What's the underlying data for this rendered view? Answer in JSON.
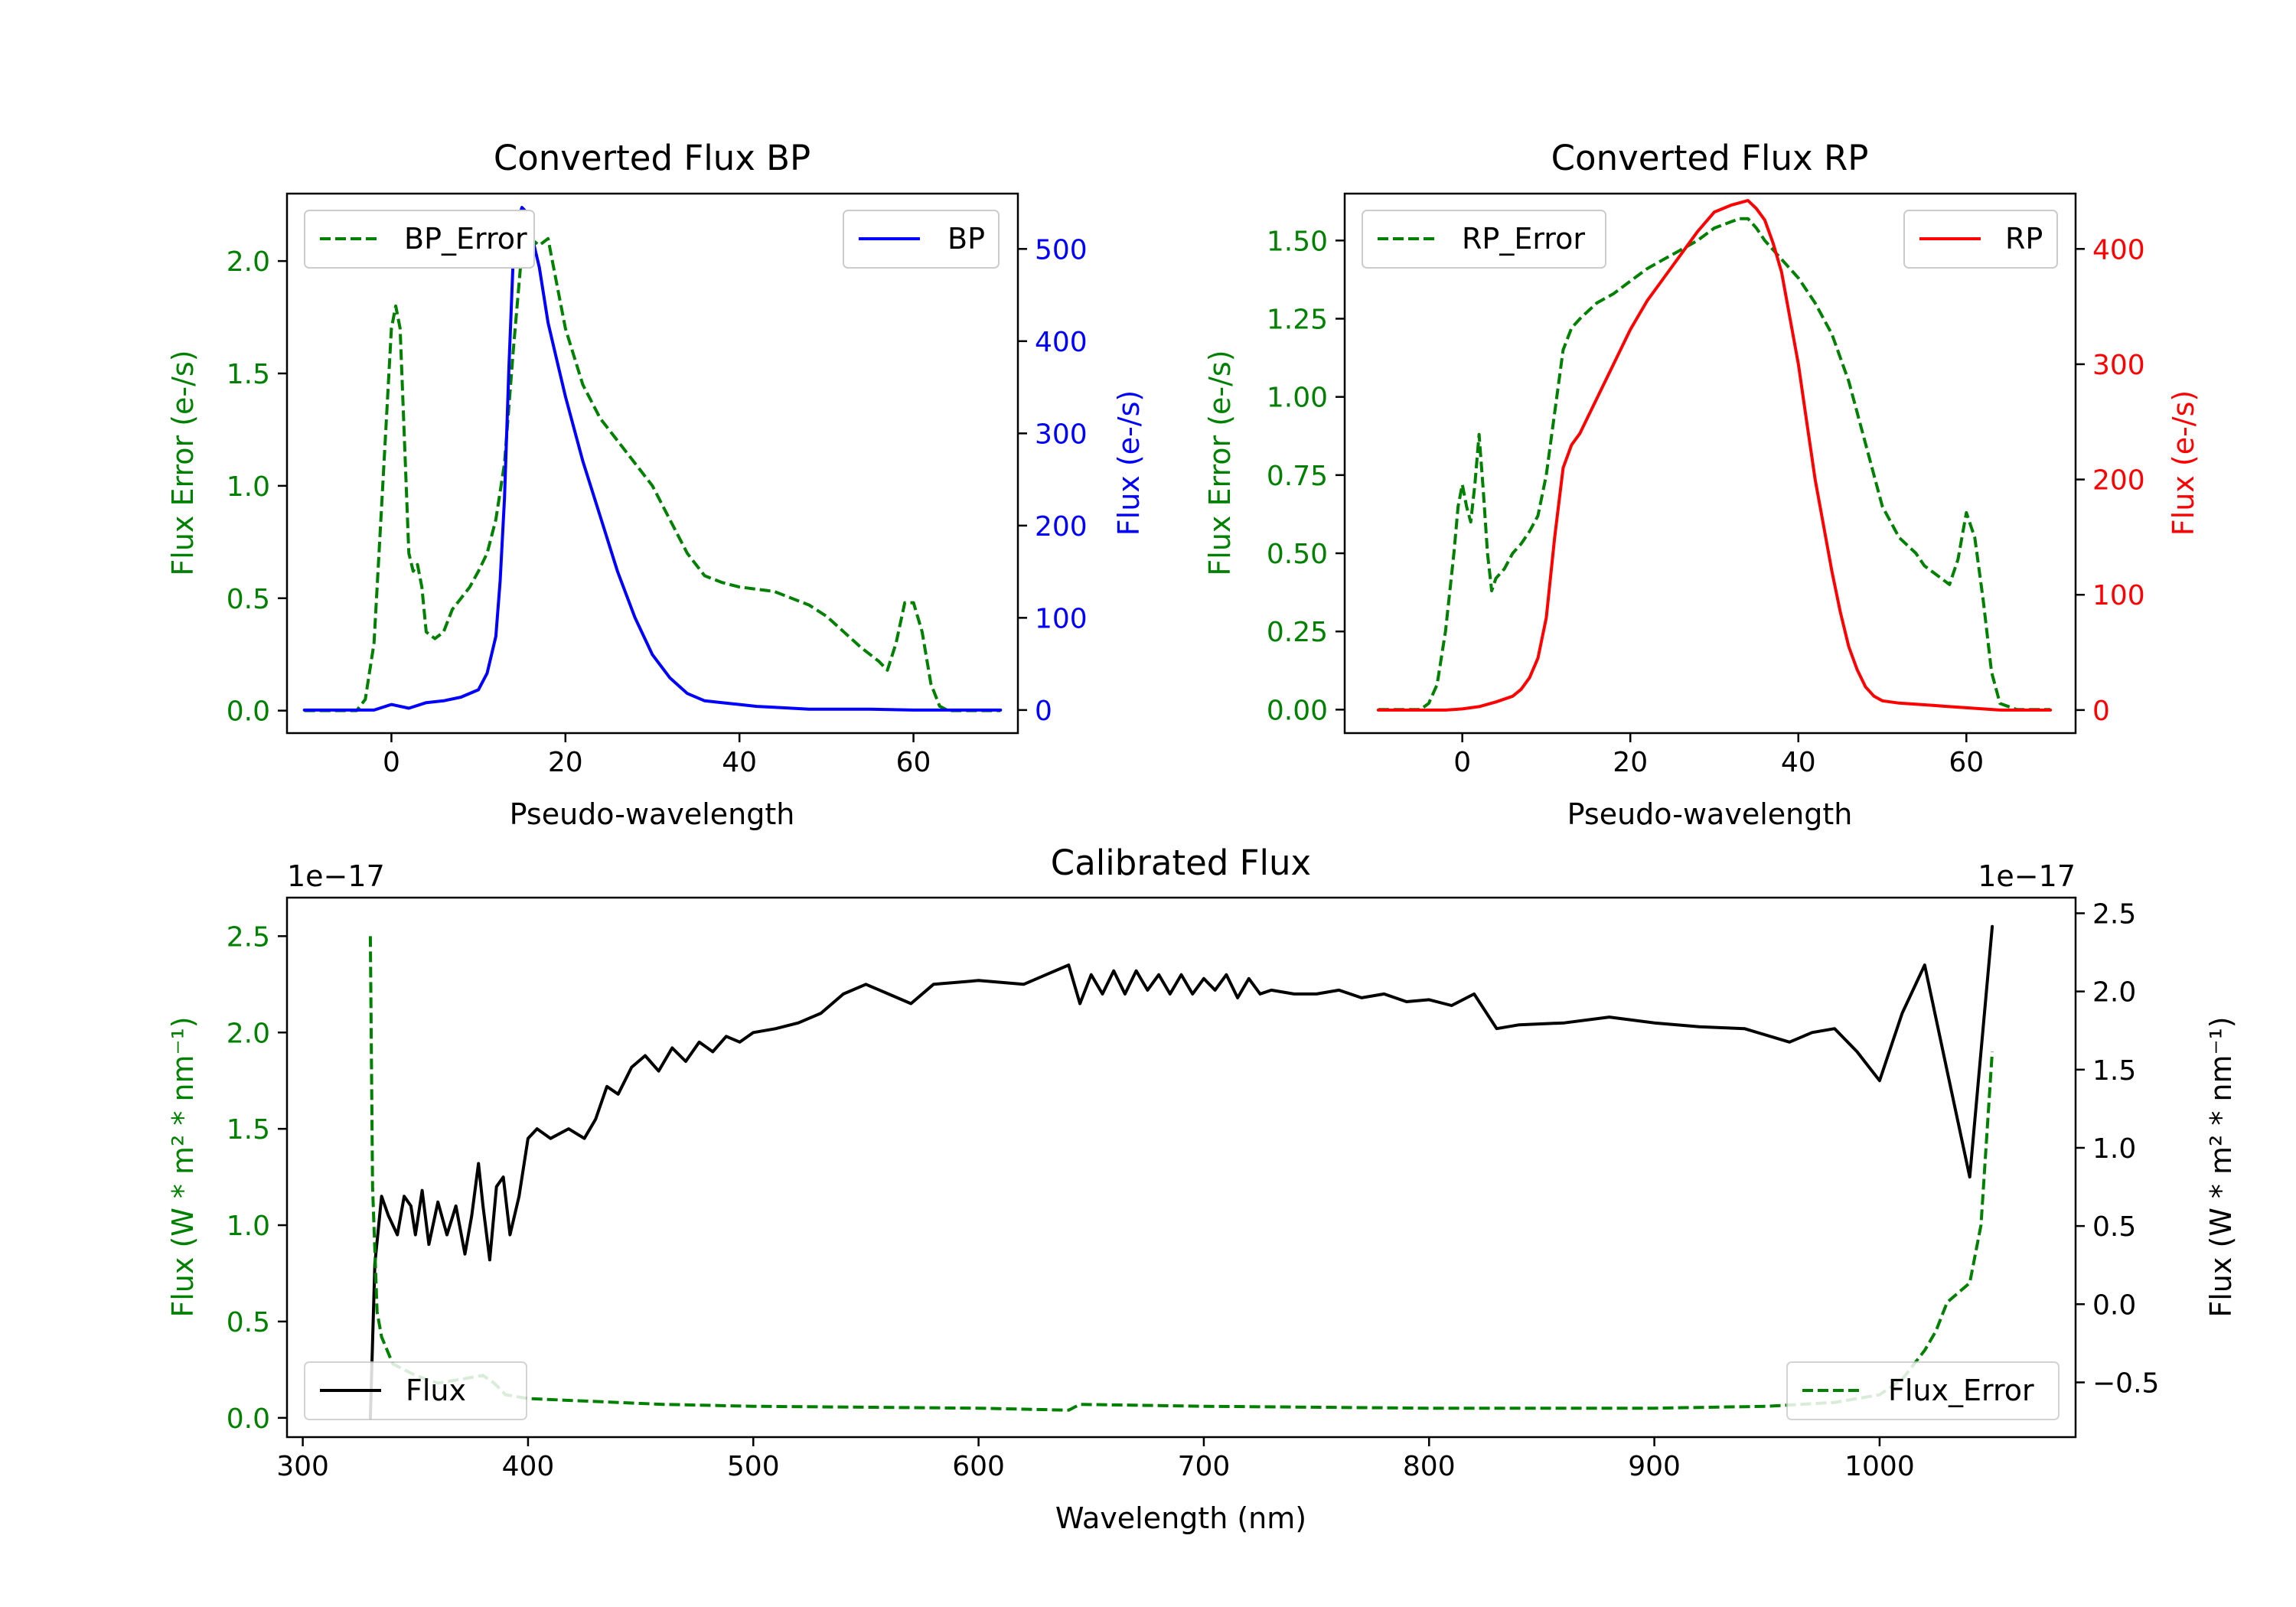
{
  "colors": {
    "error": "#008000",
    "bp": "#0000ff",
    "rp": "#ff0000",
    "flux": "#000000",
    "axis": "#000000"
  },
  "chart_data": [
    {
      "id": "bp",
      "type": "line",
      "title": "Converted Flux BP",
      "xlabel": "Pseudo-wavelength",
      "ylabel_left": "Flux Error (e-/s)",
      "ylabel_right": "Flux (e-/s)",
      "xlim": [
        -12,
        72
      ],
      "ylim_left": [
        -0.1,
        2.3
      ],
      "ylim_right": [
        -25,
        560
      ],
      "xticks": [
        0,
        20,
        40,
        60
      ],
      "xtick_labels": [
        "0",
        "20",
        "40",
        "60"
      ],
      "yticks_left": [
        0,
        0.5,
        1,
        1.5,
        2
      ],
      "ytick_labels_left": [
        "0.0",
        "0.5",
        "1.0",
        "1.5",
        "2.0"
      ],
      "yticks_right": [
        0,
        100,
        200,
        300,
        400,
        500
      ],
      "ytick_labels_right": [
        "0",
        "100",
        "200",
        "300",
        "400",
        "500"
      ],
      "legend_left": {
        "position": "upper-left",
        "label": "BP_Error",
        "style": "dashed"
      },
      "legend_right": {
        "position": "upper-right",
        "label": "BP",
        "style": "solid"
      },
      "series": [
        {
          "name": "BP_Error",
          "axis": "left",
          "style": "dashed",
          "x": [
            -10,
            -4,
            -3,
            -2,
            -1,
            0,
            0.5,
            1,
            1.5,
            2,
            2.5,
            3,
            3.5,
            4,
            5,
            6,
            7,
            8,
            9,
            10,
            11,
            12,
            13,
            14,
            15,
            15.5,
            16,
            17,
            18,
            19,
            20,
            22,
            24,
            26,
            28,
            30,
            32,
            34,
            36,
            38,
            40,
            42,
            44,
            46,
            48,
            50,
            52,
            54,
            56,
            57,
            58,
            59,
            60,
            61,
            62,
            63,
            64,
            66,
            68,
            70
          ],
          "y": [
            0,
            0,
            0.05,
            0.3,
            1.0,
            1.7,
            1.8,
            1.7,
            1.2,
            0.7,
            0.62,
            0.65,
            0.55,
            0.35,
            0.32,
            0.35,
            0.45,
            0.5,
            0.55,
            0.62,
            0.7,
            0.85,
            1.1,
            1.6,
            2.05,
            2.15,
            2.1,
            2.07,
            2.1,
            1.9,
            1.7,
            1.45,
            1.3,
            1.2,
            1.1,
            1.0,
            0.85,
            0.7,
            0.6,
            0.57,
            0.55,
            0.54,
            0.53,
            0.5,
            0.47,
            0.42,
            0.35,
            0.28,
            0.22,
            0.18,
            0.3,
            0.48,
            0.48,
            0.35,
            0.12,
            0.02,
            0,
            0,
            0,
            0
          ]
        },
        {
          "name": "BP",
          "axis": "right",
          "style": "solid",
          "x": [
            -10,
            -2,
            0,
            2,
            4,
            6,
            8,
            10,
            11,
            12,
            12.5,
            13,
            13.5,
            14,
            14.5,
            15,
            15.5,
            16,
            17,
            18,
            19,
            20,
            22,
            24,
            26,
            28,
            30,
            32,
            34,
            36,
            38,
            40,
            42,
            44,
            46,
            48,
            50,
            55,
            60,
            65,
            70
          ],
          "y": [
            0,
            0,
            6,
            2,
            8,
            10,
            14,
            22,
            40,
            80,
            140,
            230,
            370,
            490,
            530,
            545,
            540,
            520,
            480,
            420,
            380,
            340,
            270,
            210,
            150,
            100,
            60,
            35,
            18,
            10,
            8,
            6,
            4,
            3,
            2,
            1,
            1,
            1,
            0,
            0,
            0
          ]
        }
      ]
    },
    {
      "id": "rp",
      "type": "line",
      "title": "Converted Flux RP",
      "xlabel": "Pseudo-wavelength",
      "ylabel_left": "Flux Error (e-/s)",
      "ylabel_right": "Flux (e-/s)",
      "xlim": [
        -14,
        73
      ],
      "ylim_left": [
        -0.075,
        1.65
      ],
      "ylim_right": [
        -20,
        448
      ],
      "xticks": [
        0,
        20,
        40,
        60
      ],
      "xtick_labels": [
        "0",
        "20",
        "40",
        "60"
      ],
      "yticks_left": [
        0,
        0.25,
        0.5,
        0.75,
        1,
        1.25,
        1.5
      ],
      "ytick_labels_left": [
        "0.00",
        "0.25",
        "0.50",
        "0.75",
        "1.00",
        "1.25",
        "1.50"
      ],
      "yticks_right": [
        0,
        100,
        200,
        300,
        400
      ],
      "ytick_labels_right": [
        "0",
        "100",
        "200",
        "300",
        "400"
      ],
      "legend_left": {
        "position": "upper-left",
        "label": "RP_Error",
        "style": "dashed"
      },
      "legend_right": {
        "position": "upper-right",
        "label": "RP",
        "style": "solid"
      },
      "series": [
        {
          "name": "RP_Error",
          "axis": "left",
          "style": "dashed",
          "x": [
            -10,
            -5,
            -4,
            -3,
            -2,
            -1,
            -0.5,
            0,
            0.5,
            1,
            1.5,
            2,
            2.5,
            3,
            3.5,
            4,
            5,
            6,
            7,
            8,
            9,
            10,
            11,
            12,
            13,
            14,
            16,
            18,
            20,
            22,
            24,
            26,
            28,
            30,
            32,
            33,
            34,
            35,
            36,
            38,
            40,
            42,
            44,
            46,
            48,
            50,
            52,
            54,
            55,
            56,
            57,
            58,
            59,
            60,
            61,
            62,
            63,
            64,
            66,
            68,
            70
          ],
          "y": [
            0,
            0,
            0.02,
            0.08,
            0.25,
            0.5,
            0.65,
            0.72,
            0.65,
            0.6,
            0.72,
            0.88,
            0.7,
            0.5,
            0.38,
            0.42,
            0.45,
            0.5,
            0.53,
            0.57,
            0.62,
            0.75,
            0.95,
            1.15,
            1.22,
            1.25,
            1.3,
            1.33,
            1.37,
            1.41,
            1.44,
            1.47,
            1.5,
            1.54,
            1.56,
            1.57,
            1.57,
            1.54,
            1.5,
            1.44,
            1.38,
            1.3,
            1.2,
            1.05,
            0.85,
            0.65,
            0.55,
            0.5,
            0.46,
            0.44,
            0.42,
            0.4,
            0.48,
            0.63,
            0.55,
            0.35,
            0.12,
            0.02,
            0,
            0,
            0
          ]
        },
        {
          "name": "RP",
          "axis": "right",
          "style": "solid",
          "x": [
            -10,
            -4,
            -2,
            0,
            2,
            4,
            6,
            7,
            8,
            9,
            10,
            11,
            12,
            13,
            14,
            15,
            16,
            18,
            20,
            22,
            24,
            26,
            28,
            30,
            32,
            33,
            34,
            35,
            36,
            37,
            38,
            39,
            40,
            41,
            42,
            43,
            44,
            45,
            46,
            47,
            48,
            49,
            50,
            52,
            54,
            56,
            58,
            60,
            62,
            64,
            66,
            68,
            70
          ],
          "y": [
            0,
            0,
            0,
            1,
            3,
            7,
            12,
            18,
            28,
            45,
            80,
            150,
            210,
            230,
            240,
            255,
            270,
            300,
            330,
            355,
            375,
            395,
            415,
            432,
            438,
            440,
            442,
            435,
            425,
            405,
            380,
            340,
            300,
            250,
            200,
            160,
            120,
            85,
            55,
            35,
            20,
            12,
            8,
            6,
            5,
            4,
            3,
            2,
            1,
            0,
            0,
            0,
            0
          ]
        }
      ]
    },
    {
      "id": "cal",
      "type": "line",
      "title": "Calibrated Flux",
      "xlabel": "Wavelength (nm)",
      "ylabel_left": "Flux (W * m² * nm⁻¹)",
      "ylabel_right": "Flux (W * m² * nm⁻¹)",
      "offset_left": "1e−17",
      "offset_right": "1e−17",
      "xlim": [
        293,
        1087
      ],
      "ylim_left": [
        -0.1,
        2.7
      ],
      "ylim_right": [
        -0.85,
        2.6
      ],
      "xticks": [
        300,
        400,
        500,
        600,
        700,
        800,
        900,
        1000
      ],
      "xtick_labels": [
        "300",
        "400",
        "500",
        "600",
        "700",
        "800",
        "900",
        "1000"
      ],
      "yticks_left": [
        0,
        0.5,
        1,
        1.5,
        2,
        2.5
      ],
      "ytick_labels_left": [
        "0.0",
        "0.5",
        "1.0",
        "1.5",
        "2.0",
        "2.5"
      ],
      "yticks_right": [
        -0.5,
        0,
        0.5,
        1,
        1.5,
        2,
        2.5
      ],
      "ytick_labels_right": [
        "−0.5",
        "0.0",
        "0.5",
        "1.0",
        "1.5",
        "2.0",
        "2.5"
      ],
      "legend_left": {
        "position": "lower-left",
        "label": "Flux",
        "style": "solid"
      },
      "legend_right": {
        "position": "lower-right",
        "label": "Flux_Error",
        "style": "dashed"
      },
      "series": [
        {
          "name": "Flux",
          "axis": "left",
          "style": "solid",
          "x": [
            330,
            332,
            335,
            338,
            342,
            345,
            348,
            350,
            353,
            356,
            360,
            364,
            368,
            372,
            375,
            378,
            380,
            383,
            386,
            389,
            392,
            396,
            400,
            404,
            410,
            418,
            425,
            430,
            435,
            440,
            446,
            452,
            458,
            464,
            470,
            476,
            482,
            488,
            494,
            500,
            510,
            520,
            530,
            540,
            550,
            560,
            570,
            580,
            600,
            620,
            630,
            640,
            645,
            650,
            655,
            660,
            665,
            670,
            675,
            680,
            685,
            690,
            695,
            700,
            705,
            710,
            715,
            720,
            725,
            730,
            740,
            750,
            760,
            770,
            780,
            790,
            800,
            810,
            820,
            830,
            840,
            860,
            880,
            900,
            920,
            940,
            960,
            970,
            980,
            990,
            1000,
            1010,
            1020,
            1030,
            1040,
            1050
          ],
          "y": [
            0,
            0.8,
            1.15,
            1.05,
            0.95,
            1.15,
            1.1,
            0.95,
            1.18,
            0.9,
            1.12,
            0.95,
            1.1,
            0.85,
            1.05,
            1.32,
            1.1,
            0.82,
            1.2,
            1.25,
            0.95,
            1.15,
            1.45,
            1.5,
            1.45,
            1.5,
            1.45,
            1.55,
            1.72,
            1.68,
            1.82,
            1.88,
            1.8,
            1.92,
            1.85,
            1.95,
            1.9,
            1.98,
            1.95,
            2.0,
            2.02,
            2.05,
            2.1,
            2.2,
            2.25,
            2.2,
            2.15,
            2.25,
            2.27,
            2.25,
            2.3,
            2.35,
            2.15,
            2.3,
            2.2,
            2.32,
            2.2,
            2.32,
            2.22,
            2.3,
            2.2,
            2.3,
            2.2,
            2.28,
            2.22,
            2.3,
            2.18,
            2.28,
            2.2,
            2.22,
            2.2,
            2.2,
            2.22,
            2.18,
            2.2,
            2.16,
            2.17,
            2.14,
            2.2,
            2.02,
            2.04,
            2.05,
            2.08,
            2.05,
            2.03,
            2.02,
            1.95,
            2.0,
            2.02,
            1.9,
            1.75,
            2.1,
            2.35,
            1.8,
            1.25,
            2.55
          ]
        },
        {
          "name": "Flux_Error",
          "axis": "left",
          "style": "dashed",
          "x": [
            330,
            331,
            333,
            335,
            340,
            350,
            360,
            370,
            380,
            385,
            390,
            400,
            420,
            440,
            460,
            500,
            600,
            640,
            645,
            700,
            800,
            900,
            950,
            980,
            1000,
            1010,
            1020,
            1025,
            1030,
            1035,
            1040,
            1045,
            1050
          ],
          "y": [
            2.5,
            1.2,
            0.55,
            0.42,
            0.28,
            0.22,
            0.18,
            0.2,
            0.22,
            0.18,
            0.12,
            0.1,
            0.09,
            0.08,
            0.07,
            0.06,
            0.05,
            0.04,
            0.07,
            0.06,
            0.05,
            0.05,
            0.06,
            0.08,
            0.12,
            0.2,
            0.35,
            0.45,
            0.6,
            0.65,
            0.7,
            1.0,
            1.9
          ]
        }
      ]
    }
  ]
}
